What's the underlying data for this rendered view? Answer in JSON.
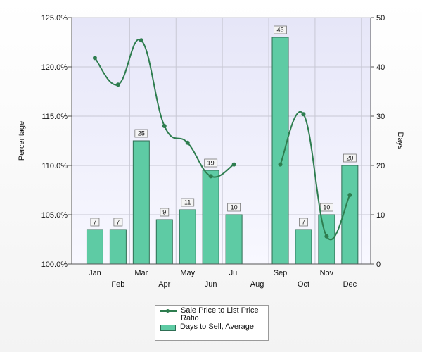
{
  "chart_data": {
    "type": "bar+line",
    "categories": [
      "Jan",
      "Feb",
      "Mar",
      "Apr",
      "May",
      "Jun",
      "Jul",
      "Aug",
      "Sep",
      "Oct",
      "Nov",
      "Dec"
    ],
    "series": [
      {
        "name": "Days to Sell, Average",
        "type": "bar",
        "axis": "right",
        "values": [
          7,
          7,
          25,
          9,
          11,
          19,
          10,
          null,
          46,
          7,
          10,
          20
        ],
        "labels": [
          "7",
          "7",
          "25",
          "9",
          "11",
          "19",
          "10",
          "",
          "46",
          "7",
          "10",
          "20"
        ]
      },
      {
        "name": "Sale Price to List Price Ratio",
        "type": "line",
        "axis": "left",
        "values": [
          120.9,
          118.2,
          122.7,
          114.0,
          112.3,
          108.9,
          110.1,
          null,
          110.1,
          115.2,
          102.8,
          107.0
        ]
      }
    ],
    "y_left": {
      "label": "Percentage",
      "min": 100,
      "max": 125,
      "ticks": [
        "100.0%",
        "105.0%",
        "110.0%",
        "115.0%",
        "120.0%",
        "125.0%"
      ]
    },
    "y_right": {
      "label": "Days",
      "min": 0,
      "max": 50,
      "ticks": [
        "0",
        "10",
        "20",
        "30",
        "40",
        "50"
      ]
    },
    "legend": {
      "position": "bottom-center",
      "items": [
        "Sale Price to List Price Ratio",
        "Days to Sell, Average"
      ]
    },
    "grid": true,
    "colors": {
      "bar_fill": "#5ecba4",
      "bar_stroke": "#2e6e54",
      "line": "#2e7d4f",
      "plot_bg_top": "#e8e8f8",
      "plot_bg_bottom": "#f7f7ff"
    }
  }
}
